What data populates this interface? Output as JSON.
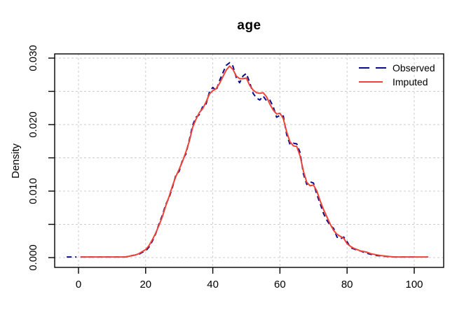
{
  "title": "age",
  "colors": {
    "observed": "#0B0B8B",
    "imputed": "#EE4437",
    "grid": "#CDCDCD",
    "axis": "#000000",
    "background": "#FFFFFF",
    "text": "#000000"
  },
  "legend": {
    "items": [
      {
        "label": "Observed",
        "series": "observed",
        "line_style": "dashed"
      },
      {
        "label": "Imputed",
        "series": "imputed",
        "line_style": "solid"
      }
    ],
    "position": "top-right",
    "boxed": false
  },
  "axes": {
    "x": {
      "label": "",
      "shown_range": [
        -7.1,
        108.8
      ],
      "ticks": [
        {
          "v": 0,
          "label": "0"
        },
        {
          "v": 20,
          "label": "20"
        },
        {
          "v": 40,
          "label": "40"
        },
        {
          "v": 60,
          "label": "60"
        },
        {
          "v": 80,
          "label": "80"
        },
        {
          "v": 100,
          "label": "100"
        }
      ],
      "gridlines": [
        0,
        20,
        40,
        60,
        80,
        100
      ]
    },
    "y": {
      "label": "Density",
      "shown_range": [
        -0.0016,
        0.0306
      ],
      "ticks": [
        {
          "v": 0.0,
          "label": "0.000"
        },
        {
          "v": 0.005,
          "label": ""
        },
        {
          "v": 0.01,
          "label": "0.010"
        },
        {
          "v": 0.015,
          "label": ""
        },
        {
          "v": 0.02,
          "label": "0.020"
        },
        {
          "v": 0.025,
          "label": ""
        },
        {
          "v": 0.03,
          "label": "0.030"
        }
      ],
      "gridlines": [
        0.0,
        0.005,
        0.01,
        0.015,
        0.02,
        0.025,
        0.03
      ],
      "label_rotation_deg": -90
    }
  },
  "chart_data": {
    "type": "line",
    "title": "age",
    "xlabel": "",
    "ylabel": "Density",
    "xlim": [
      -7.1,
      108.8
    ],
    "ylim": [
      -0.0016,
      0.0306
    ],
    "grid": true,
    "legend_position": "top-right",
    "series": [
      {
        "name": "Observed",
        "color": "#0B0B8B",
        "style": "dashed",
        "width": 2,
        "segments": [
          [
            [
              -3.5,
              0.0001
            ],
            [
              -0.6,
              0.0001
            ]
          ],
          [
            [
              0.6,
              0.0001
            ],
            [
              4,
              0.0001
            ],
            [
              8,
              0.0001
            ],
            [
              12,
              0.0001
            ],
            [
              14,
              0.0001
            ],
            [
              15,
              0.0002
            ],
            [
              16,
              0.0003
            ],
            [
              17,
              0.0004
            ],
            [
              18,
              0.0005
            ],
            [
              19,
              0.0008
            ],
            [
              20,
              0.001
            ],
            [
              21,
              0.0016
            ],
            [
              22,
              0.0025
            ],
            [
              23,
              0.0036
            ],
            [
              24,
              0.0051
            ],
            [
              25,
              0.0064
            ],
            [
              26,
              0.008
            ],
            [
              27,
              0.009
            ],
            [
              28,
              0.0106
            ],
            [
              29,
              0.0124
            ],
            [
              30,
              0.013
            ],
            [
              31,
              0.0147
            ],
            [
              32,
              0.0156
            ],
            [
              33,
              0.0177
            ],
            [
              34,
              0.0199
            ],
            [
              35,
              0.0211
            ],
            [
              36,
              0.0215
            ],
            [
              37,
              0.0227
            ],
            [
              38,
              0.0231
            ],
            [
              39,
              0.0249
            ],
            [
              40,
              0.0256
            ],
            [
              41,
              0.0251
            ],
            [
              42,
              0.0266
            ],
            [
              43,
              0.0278
            ],
            [
              44,
              0.0289
            ],
            [
              45,
              0.0293
            ],
            [
              46,
              0.0288
            ],
            [
              47,
              0.0271
            ],
            [
              48,
              0.0263
            ],
            [
              49,
              0.0273
            ],
            [
              50,
              0.0277
            ],
            [
              51,
              0.0263
            ],
            [
              52,
              0.0247
            ],
            [
              53,
              0.024
            ],
            [
              54,
              0.0237
            ],
            [
              55,
              0.0243
            ],
            [
              56,
              0.0236
            ],
            [
              57,
              0.0237
            ],
            [
              58,
              0.0227
            ],
            [
              59,
              0.0211
            ],
            [
              60,
              0.0214
            ],
            [
              61,
              0.0213
            ],
            [
              62,
              0.0185
            ],
            [
              63,
              0.017
            ],
            [
              64,
              0.0172
            ],
            [
              65,
              0.0171
            ],
            [
              66,
              0.0158
            ],
            [
              67,
              0.0126
            ],
            [
              68,
              0.011
            ],
            [
              69,
              0.0114
            ],
            [
              70,
              0.0112
            ],
            [
              71,
              0.0095
            ],
            [
              72,
              0.0081
            ],
            [
              73,
              0.0066
            ],
            [
              74,
              0.0056
            ],
            [
              75,
              0.0048
            ],
            [
              76,
              0.0044
            ],
            [
              77,
              0.0031
            ],
            [
              78,
              0.0028
            ],
            [
              79,
              0.0031
            ],
            [
              80,
              0.0024
            ],
            [
              81,
              0.0015
            ],
            [
              82,
              0.0013
            ],
            [
              83,
              0.0011
            ],
            [
              84,
              0.001
            ],
            [
              85,
              0.0008
            ],
            [
              87,
              0.0005
            ],
            [
              89,
              0.0003
            ],
            [
              91,
              0.0002
            ],
            [
              94,
              0.0001
            ],
            [
              100,
              0.0001
            ]
          ]
        ]
      },
      {
        "name": "Imputed",
        "color": "#EE4437",
        "style": "solid",
        "width": 2,
        "segments": [
          [
            [
              0.6,
              0.0001
            ],
            [
              4,
              0.0001
            ],
            [
              8,
              0.0001
            ],
            [
              12,
              0.0001
            ],
            [
              14,
              0.0001
            ],
            [
              15,
              0.0002
            ],
            [
              16,
              0.0003
            ],
            [
              17,
              0.0004
            ],
            [
              18,
              0.0006
            ],
            [
              19,
              0.0009
            ],
            [
              20,
              0.0012
            ],
            [
              21,
              0.0018
            ],
            [
              22,
              0.0027
            ],
            [
              23,
              0.0037
            ],
            [
              24,
              0.0049
            ],
            [
              25,
              0.0062
            ],
            [
              26,
              0.0078
            ],
            [
              27,
              0.0092
            ],
            [
              28,
              0.0108
            ],
            [
              29,
              0.0122
            ],
            [
              30,
              0.0133
            ],
            [
              31,
              0.0145
            ],
            [
              32,
              0.0159
            ],
            [
              33,
              0.0175
            ],
            [
              34,
              0.0196
            ],
            [
              35,
              0.0208
            ],
            [
              36,
              0.0218
            ],
            [
              37,
              0.0224
            ],
            [
              38,
              0.0234
            ],
            [
              39,
              0.0246
            ],
            [
              40,
              0.0251
            ],
            [
              41,
              0.0254
            ],
            [
              42,
              0.0262
            ],
            [
              43,
              0.0272
            ],
            [
              44,
              0.0282
            ],
            [
              45,
              0.0288
            ],
            [
              46,
              0.0283
            ],
            [
              47,
              0.0273
            ],
            [
              48,
              0.0269
            ],
            [
              49,
              0.0269
            ],
            [
              50,
              0.027
            ],
            [
              51,
              0.0259
            ],
            [
              52,
              0.0252
            ],
            [
              53,
              0.0248
            ],
            [
              54,
              0.0247
            ],
            [
              55,
              0.0248
            ],
            [
              56,
              0.0242
            ],
            [
              57,
              0.0231
            ],
            [
              58,
              0.0222
            ],
            [
              59,
              0.0216
            ],
            [
              60,
              0.0217
            ],
            [
              61,
              0.0209
            ],
            [
              62,
              0.0189
            ],
            [
              63,
              0.0174
            ],
            [
              64,
              0.0168
            ],
            [
              65,
              0.0167
            ],
            [
              66,
              0.0153
            ],
            [
              67,
              0.013
            ],
            [
              68,
              0.0113
            ],
            [
              69,
              0.0108
            ],
            [
              70,
              0.0109
            ],
            [
              71,
              0.01
            ],
            [
              72,
              0.0085
            ],
            [
              73,
              0.0072
            ],
            [
              74,
              0.0061
            ],
            [
              75,
              0.005
            ],
            [
              76,
              0.0041
            ],
            [
              77,
              0.0035
            ],
            [
              78,
              0.0032
            ],
            [
              79,
              0.0029
            ],
            [
              80,
              0.0021
            ],
            [
              81,
              0.0017
            ],
            [
              82,
              0.0014
            ],
            [
              83,
              0.0012
            ],
            [
              84,
              0.001
            ],
            [
              85,
              0.0009
            ],
            [
              86,
              0.0008
            ],
            [
              87,
              0.0006
            ],
            [
              88,
              0.0005
            ],
            [
              89,
              0.0004
            ],
            [
              90,
              0.0003
            ],
            [
              92,
              0.0002
            ],
            [
              94,
              0.0001
            ],
            [
              98,
              0.0001
            ],
            [
              104.2,
              0.0001
            ]
          ]
        ]
      }
    ]
  }
}
